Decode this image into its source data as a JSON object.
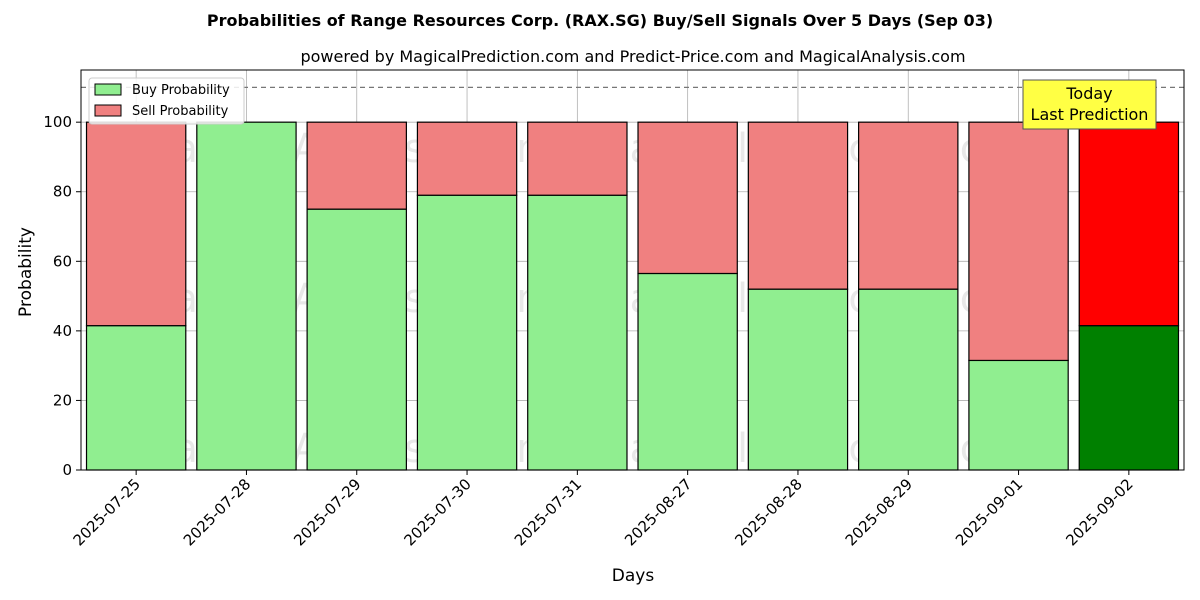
{
  "chart_data": {
    "type": "bar",
    "stacked": true,
    "title": "Probabilities of Range Resources Corp. (RAX.SG) Buy/Sell Signals Over 5 Days (Sep 03)",
    "subtitle": "powered by MagicalPrediction.com and Predict-Price.com and MagicalAnalysis.com",
    "xlabel": "Days",
    "ylabel": "Probability",
    "ylim": [
      0,
      115
    ],
    "yticks": [
      0,
      20,
      40,
      60,
      80,
      100
    ],
    "grid": true,
    "legend_position": "top-left",
    "reference_line": {
      "y": 110,
      "style": "dashed"
    },
    "categories": [
      "2025-07-25",
      "2025-07-28",
      "2025-07-29",
      "2025-07-30",
      "2025-07-31",
      "2025-08-27",
      "2025-08-28",
      "2025-08-29",
      "2025-09-01",
      "2025-09-02"
    ],
    "series": [
      {
        "name": "Buy Probability",
        "color": "#90ee90",
        "values": [
          41.5,
          100,
          75,
          79,
          79,
          56.5,
          52,
          52,
          31.5,
          41.5
        ]
      },
      {
        "name": "Sell Probability",
        "color": "#f08080",
        "values": [
          58.5,
          0,
          25,
          21,
          21,
          43.5,
          48,
          48,
          68.5,
          58.5
        ]
      }
    ],
    "highlight": {
      "index": 9,
      "buy_color": "#008000",
      "sell_color": "#ff0000"
    },
    "annotation": {
      "lines": [
        "Today",
        "Last Prediction"
      ],
      "background": "#ffff44"
    },
    "watermarks": [
      "MagicalAnalysis.com",
      "MagicalPrediction.com"
    ]
  }
}
